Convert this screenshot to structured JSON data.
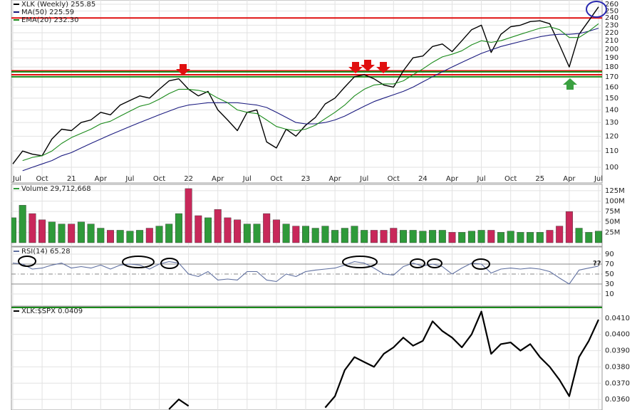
{
  "chart_data": [
    {
      "type": "line",
      "log_scale": true,
      "grid": true,
      "x": [
        "2020-07",
        "2020-08",
        "2020-09",
        "2020-10",
        "2020-11",
        "2020-12",
        "2021-01",
        "2021-02",
        "2021-03",
        "2021-04",
        "2021-05",
        "2021-06",
        "2021-07",
        "2021-08",
        "2021-09",
        "2021-10",
        "2021-11",
        "2021-12",
        "2022-01",
        "2022-02",
        "2022-03",
        "2022-04",
        "2022-05",
        "2022-06",
        "2022-07",
        "2022-08",
        "2022-09",
        "2022-10",
        "2022-11",
        "2022-12",
        "2023-01",
        "2023-02",
        "2023-03",
        "2023-04",
        "2023-05",
        "2023-06",
        "2023-07",
        "2023-08",
        "2023-09",
        "2023-10",
        "2023-11",
        "2023-12",
        "2024-01",
        "2024-02",
        "2024-03",
        "2024-04",
        "2024-05",
        "2024-06",
        "2024-07",
        "2024-08",
        "2024-09",
        "2024-10",
        "2024-11",
        "2024-12",
        "2025-01",
        "2025-02",
        "2025-03",
        "2025-04",
        "2025-05",
        "2025-06",
        "2025-07"
      ],
      "xlim": [
        "2020-07",
        "2025-07"
      ],
      "xticks": [
        {
          "value": "2020-07",
          "label": "Jul"
        },
        {
          "value": "2020-10",
          "label": "Oct"
        },
        {
          "value": "2021-01",
          "label": "21"
        },
        {
          "value": "2021-04",
          "label": "Apr"
        },
        {
          "value": "2021-07",
          "label": "Jul"
        },
        {
          "value": "2021-10",
          "label": "Oct"
        },
        {
          "value": "2022-01",
          "label": "22"
        },
        {
          "value": "2022-04",
          "label": "Apr"
        },
        {
          "value": "2022-07",
          "label": "Jul"
        },
        {
          "value": "2022-10",
          "label": "Oct"
        },
        {
          "value": "2023-01",
          "label": "23"
        },
        {
          "value": "2023-04",
          "label": "Apr"
        },
        {
          "value": "2023-07",
          "label": "Jul"
        },
        {
          "value": "2023-10",
          "label": "Oct"
        },
        {
          "value": "2024-01",
          "label": "24"
        },
        {
          "value": "2024-04",
          "label": "Apr"
        },
        {
          "value": "2024-07",
          "label": "Jul"
        },
        {
          "value": "2024-10",
          "label": "Oct"
        },
        {
          "value": "2025-01",
          "label": "25"
        },
        {
          "value": "2025-04",
          "label": "Apr"
        },
        {
          "value": "2025-07",
          "label": "Jul"
        }
      ],
      "ylim": [
        92,
        264.4
      ],
      "yticks": [
        100,
        110,
        120,
        130,
        140,
        150,
        160,
        170,
        180,
        190,
        200,
        210,
        220,
        230,
        240,
        250,
        260
      ],
      "series": [
        {
          "name": "XLK (Weekly) 255.85",
          "color": "#000000",
          "values": [
            102,
            110,
            108,
            107,
            118,
            125,
            124,
            130,
            132,
            138,
            136,
            144,
            148,
            152,
            150,
            158,
            166,
            168,
            158,
            152,
            156,
            140,
            132,
            124,
            138,
            140,
            116,
            112,
            125,
            120,
            128,
            134,
            145,
            150,
            160,
            170,
            172,
            168,
            162,
            160,
            176,
            190,
            192,
            203,
            206,
            197,
            210,
            224,
            230,
            196,
            218,
            228,
            230,
            235,
            236,
            232,
            205,
            180,
            218,
            236,
            256
          ]
        },
        {
          "name": "MA(50) 225.59",
          "color": "#1c1c80",
          "values": [
            null,
            98,
            100,
            102,
            104,
            107,
            109,
            112,
            115,
            118,
            121,
            124,
            127,
            130,
            133,
            136,
            139,
            142,
            144,
            145,
            146,
            146,
            146,
            146,
            145,
            144,
            142,
            138,
            134,
            130,
            129,
            129,
            130,
            132,
            135,
            139,
            143,
            147,
            150,
            153,
            156,
            160,
            165,
            170,
            175,
            180,
            185,
            190,
            195,
            199,
            203,
            206,
            209,
            212,
            215,
            217,
            218,
            218,
            219,
            222,
            226
          ]
        },
        {
          "name": "EMA(20) 232.30",
          "color": "#1a8a1a",
          "values": [
            null,
            104,
            106,
            107,
            110,
            115,
            119,
            122,
            125,
            129,
            131,
            135,
            139,
            143,
            145,
            149,
            154,
            158,
            158,
            157,
            155,
            150,
            146,
            140,
            138,
            137,
            132,
            127,
            125,
            124,
            125,
            128,
            133,
            138,
            144,
            152,
            158,
            162,
            163,
            163,
            166,
            172,
            178,
            185,
            191,
            194,
            198,
            205,
            210,
            208,
            210,
            214,
            218,
            222,
            226,
            228,
            224,
            214,
            214,
            222,
            232
          ]
        }
      ],
      "levels": [
        {
          "value": 240,
          "color": "#e01010"
        },
        {
          "value": 176,
          "color": "#e01010"
        },
        {
          "value": 172,
          "color": "#e01010"
        },
        {
          "value": 175,
          "color": "#1a8a1a"
        },
        {
          "value": 170,
          "color": "#1a8a1a"
        }
      ]
    },
    {
      "type": "bar",
      "grid": true,
      "x": [
        "2020-07",
        "2020-08",
        "2020-09",
        "2020-10",
        "2020-11",
        "2020-12",
        "2021-01",
        "2021-02",
        "2021-03",
        "2021-04",
        "2021-05",
        "2021-06",
        "2021-07",
        "2021-08",
        "2021-09",
        "2021-10",
        "2021-11",
        "2021-12",
        "2022-01",
        "2022-02",
        "2022-03",
        "2022-04",
        "2022-05",
        "2022-06",
        "2022-07",
        "2022-08",
        "2022-09",
        "2022-10",
        "2022-11",
        "2022-12",
        "2023-01",
        "2023-02",
        "2023-03",
        "2023-04",
        "2023-05",
        "2023-06",
        "2023-07",
        "2023-08",
        "2023-09",
        "2023-10",
        "2023-11",
        "2023-12",
        "2024-01",
        "2024-02",
        "2024-03",
        "2024-04",
        "2024-05",
        "2024-06",
        "2024-07",
        "2024-08",
        "2024-09",
        "2024-10",
        "2024-11",
        "2024-12",
        "2025-01",
        "2025-02",
        "2025-03",
        "2025-04",
        "2025-05",
        "2025-06",
        "2025-07"
      ],
      "ylim": [
        0,
        135
      ],
      "yticks": [
        {
          "value": 25,
          "label": "25M"
        },
        {
          "value": 50,
          "label": "50M"
        },
        {
          "value": 75,
          "label": "75M"
        },
        {
          "value": 100,
          "label": "100M"
        },
        {
          "value": 125,
          "label": "125M"
        }
      ],
      "series": [
        {
          "name": "Volume 29,712,668",
          "up_color": "#2f9a3a",
          "down_color": "#c8285a",
          "values": [
            60,
            90,
            70,
            55,
            50,
            45,
            45,
            50,
            45,
            35,
            30,
            30,
            28,
            30,
            35,
            40,
            45,
            70,
            130,
            65,
            60,
            80,
            60,
            55,
            45,
            45,
            70,
            55,
            45,
            40,
            40,
            35,
            40,
            30,
            35,
            40,
            30,
            30,
            30,
            35,
            30,
            30,
            28,
            30,
            30,
            25,
            25,
            28,
            30,
            30,
            25,
            28,
            25,
            25,
            25,
            30,
            40,
            75,
            35,
            25,
            28
          ]
        }
      ]
    },
    {
      "type": "line",
      "grid": true,
      "x": [
        "2020-07",
        "2020-08",
        "2020-09",
        "2020-10",
        "2020-11",
        "2020-12",
        "2021-01",
        "2021-02",
        "2021-03",
        "2021-04",
        "2021-05",
        "2021-06",
        "2021-07",
        "2021-08",
        "2021-09",
        "2021-10",
        "2021-11",
        "2021-12",
        "2022-01",
        "2022-02",
        "2022-03",
        "2022-04",
        "2022-05",
        "2022-06",
        "2022-07",
        "2022-08",
        "2022-09",
        "2022-10",
        "2022-11",
        "2022-12",
        "2023-01",
        "2023-02",
        "2023-03",
        "2023-04",
        "2023-05",
        "2023-06",
        "2023-07",
        "2023-08",
        "2023-09",
        "2023-10",
        "2023-11",
        "2023-12",
        "2024-01",
        "2024-02",
        "2024-03",
        "2024-04",
        "2024-05",
        "2024-06",
        "2024-07",
        "2024-08",
        "2024-09",
        "2024-10",
        "2024-11",
        "2024-12",
        "2025-01",
        "2025-02",
        "2025-03",
        "2025-04",
        "2025-05",
        "2025-06",
        "2025-07"
      ],
      "ylim": [
        0,
        100
      ],
      "yticks": [
        10,
        30,
        50,
        70,
        90
      ],
      "series": [
        {
          "name": "RSI(14) 65.28",
          "color": "#6070a0",
          "values": [
            72,
            70,
            60,
            62,
            68,
            72,
            62,
            65,
            62,
            68,
            60,
            68,
            70,
            68,
            60,
            70,
            75,
            72,
            50,
            45,
            55,
            38,
            40,
            38,
            55,
            55,
            38,
            35,
            50,
            45,
            55,
            58,
            60,
            62,
            68,
            75,
            72,
            62,
            50,
            48,
            65,
            72,
            66,
            70,
            65,
            50,
            62,
            72,
            70,
            52,
            60,
            62,
            60,
            62,
            60,
            55,
            42,
            30,
            58,
            62,
            66
          ]
        }
      ],
      "annotation": "??"
    },
    {
      "type": "line",
      "grid": true,
      "x": [
        "2021-11",
        "2021-12",
        "2022-01",
        "2022-02",
        "2023-03",
        "2023-04",
        "2023-05",
        "2023-06",
        "2023-07",
        "2023-08",
        "2023-09",
        "2023-10",
        "2023-11",
        "2023-12",
        "2024-01",
        "2024-02",
        "2024-03",
        "2024-04",
        "2024-05",
        "2024-06",
        "2024-07",
        "2024-08",
        "2024-09",
        "2024-10",
        "2024-11",
        "2024-12",
        "2025-01",
        "2025-02",
        "2025-03",
        "2025-04",
        "2025-05",
        "2025-06",
        "2025-07"
      ],
      "ylim": [
        0.03535,
        0.04165
      ],
      "yticks": [
        {
          "value": 0.036,
          "label": "0.0360"
        },
        {
          "value": 0.037,
          "label": "0.0370"
        },
        {
          "value": 0.038,
          "label": "0.0380"
        },
        {
          "value": 0.039,
          "label": "0.0390"
        },
        {
          "value": 0.04,
          "label": "0.0400"
        },
        {
          "value": 0.041,
          "label": "0.0410"
        }
      ],
      "series": [
        {
          "name": "XLK:$SPX 0.0409",
          "color": "#000000",
          "values": [
            0.0354,
            0.036,
            0.0356,
            null,
            0.0355,
            0.0362,
            0.0378,
            0.0386,
            0.0383,
            0.038,
            0.0388,
            0.0392,
            0.0398,
            0.0393,
            0.0396,
            0.0408,
            0.0402,
            0.0398,
            0.0392,
            0.04,
            0.0414,
            0.0388,
            0.0394,
            0.0395,
            0.039,
            0.0394,
            0.0386,
            0.038,
            0.0372,
            0.0362,
            0.0386,
            0.0396,
            0.0409
          ]
        }
      ]
    }
  ]
}
